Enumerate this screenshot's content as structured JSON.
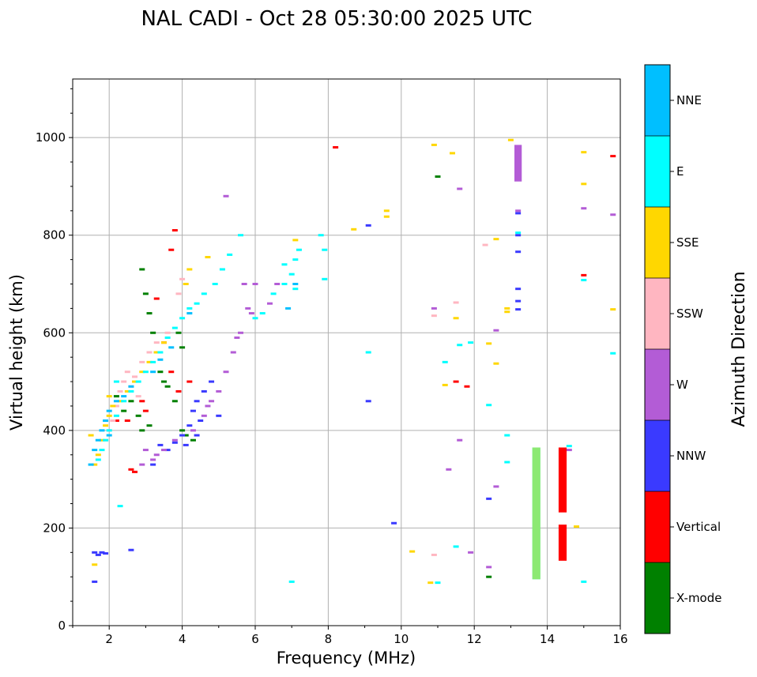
{
  "chart_data": {
    "type": "scatter",
    "title": "NAL CADI - Oct 28 05:30:00 2025 UTC",
    "xlabel": "Frequency (MHz)",
    "ylabel": "Virtual height (km)",
    "xlim": [
      1,
      16
    ],
    "ylim": [
      0,
      1120
    ],
    "xticks": [
      2,
      4,
      6,
      8,
      10,
      12,
      14,
      16
    ],
    "yticks": [
      0,
      200,
      400,
      600,
      800,
      1000
    ],
    "grid": true,
    "colorbar": {
      "title": "Azimuth Direction",
      "categories": [
        {
          "name": "X-mode",
          "color": "#008000"
        },
        {
          "name": "Vertical",
          "color": "#ff0000"
        },
        {
          "name": "NNW",
          "color": "#3a3aff"
        },
        {
          "name": "W",
          "color": "#b35cd6"
        },
        {
          "name": "SSW",
          "color": "#ffb6c1"
        },
        {
          "name": "SSE",
          "color": "#ffd700"
        },
        {
          "name": "E",
          "color": "#00ffff"
        },
        {
          "name": "NNE",
          "color": "#00bfff"
        }
      ]
    },
    "series": [
      {
        "name": "X-mode",
        "points": [
          [
            2.9,
            730
          ],
          [
            3.0,
            680
          ],
          [
            3.1,
            640
          ],
          [
            3.2,
            600
          ],
          [
            3.3,
            560
          ],
          [
            3.4,
            520
          ],
          [
            3.5,
            500
          ],
          [
            3.6,
            490
          ],
          [
            3.8,
            460
          ],
          [
            2.6,
            460
          ],
          [
            2.8,
            430
          ],
          [
            2.9,
            400
          ],
          [
            4.0,
            400
          ],
          [
            4.1,
            390
          ],
          [
            4.3,
            380
          ],
          [
            3.9,
            600
          ],
          [
            4.0,
            570
          ],
          [
            11.0,
            920
          ],
          [
            12.4,
            100
          ],
          [
            13.2,
            960
          ],
          [
            13.2,
            940
          ],
          [
            2.2,
            470
          ],
          [
            2.4,
            440
          ],
          [
            3.1,
            410
          ]
        ]
      },
      {
        "name": "Vertical",
        "points": [
          [
            3.3,
            670
          ],
          [
            3.5,
            580
          ],
          [
            3.7,
            520
          ],
          [
            3.9,
            480
          ],
          [
            2.5,
            420
          ],
          [
            2.2,
            420
          ],
          [
            2.6,
            320
          ],
          [
            2.7,
            315
          ],
          [
            4.2,
            500
          ],
          [
            8.2,
            980
          ],
          [
            11.8,
            490
          ],
          [
            11.5,
            500
          ],
          [
            15.0,
            718
          ],
          [
            15.8,
            962
          ],
          [
            3.0,
            440
          ],
          [
            2.9,
            460
          ],
          [
            3.8,
            810
          ],
          [
            3.7,
            770
          ]
        ]
      },
      {
        "name": "NNW",
        "points": [
          [
            1.6,
            150
          ],
          [
            1.7,
            145
          ],
          [
            1.8,
            150
          ],
          [
            1.9,
            148
          ],
          [
            2.6,
            155
          ],
          [
            1.6,
            90
          ],
          [
            3.4,
            370
          ],
          [
            3.6,
            360
          ],
          [
            3.8,
            375
          ],
          [
            4.0,
            390
          ],
          [
            4.2,
            410
          ],
          [
            4.3,
            440
          ],
          [
            4.4,
            460
          ],
          [
            4.6,
            480
          ],
          [
            4.8,
            500
          ],
          [
            9.1,
            820
          ],
          [
            9.1,
            460
          ],
          [
            9.8,
            210
          ],
          [
            12.4,
            260
          ],
          [
            13.2,
            690
          ],
          [
            13.2,
            665
          ],
          [
            13.2,
            648
          ],
          [
            13.2,
            800
          ],
          [
            13.2,
            766
          ],
          [
            13.2,
            845
          ],
          [
            5.0,
            430
          ],
          [
            4.5,
            420
          ],
          [
            3.2,
            330
          ],
          [
            4.1,
            370
          ],
          [
            4.4,
            390
          ]
        ]
      },
      {
        "name": "W",
        "points": [
          [
            3.2,
            340
          ],
          [
            3.3,
            350
          ],
          [
            3.5,
            360
          ],
          [
            3.8,
            380
          ],
          [
            4.3,
            400
          ],
          [
            4.6,
            430
          ],
          [
            4.8,
            460
          ],
          [
            5.0,
            480
          ],
          [
            5.2,
            520
          ],
          [
            5.4,
            560
          ],
          [
            5.6,
            600
          ],
          [
            5.8,
            650
          ],
          [
            6.0,
            700
          ],
          [
            5.2,
            880
          ],
          [
            5.7,
            700
          ],
          [
            5.9,
            640
          ],
          [
            10.9,
            650
          ],
          [
            11.3,
            320
          ],
          [
            11.6,
            380
          ],
          [
            11.9,
            150
          ],
          [
            12.4,
            120
          ],
          [
            12.6,
            285
          ],
          [
            12.6,
            605
          ],
          [
            13.2,
            850
          ],
          [
            13.2,
            980
          ],
          [
            13.2,
            950
          ],
          [
            13.2,
            920
          ],
          [
            14.6,
            360
          ],
          [
            15.0,
            855
          ],
          [
            15.8,
            842
          ],
          [
            6.6,
            700
          ],
          [
            6.4,
            660
          ],
          [
            3.0,
            360
          ],
          [
            2.9,
            330
          ],
          [
            11.6,
            895
          ],
          [
            4.7,
            450
          ],
          [
            5.5,
            590
          ]
        ]
      },
      {
        "name": "SSW",
        "points": [
          [
            2.0,
            400
          ],
          [
            2.1,
            420
          ],
          [
            2.2,
            450
          ],
          [
            2.3,
            480
          ],
          [
            2.4,
            500
          ],
          [
            2.5,
            520
          ],
          [
            2.7,
            510
          ],
          [
            2.9,
            540
          ],
          [
            3.1,
            560
          ],
          [
            3.3,
            580
          ],
          [
            3.6,
            600
          ],
          [
            3.9,
            680
          ],
          [
            4.0,
            710
          ],
          [
            1.9,
            380
          ],
          [
            2.6,
            490
          ],
          [
            10.9,
            145
          ],
          [
            10.9,
            635
          ],
          [
            11.5,
            662
          ],
          [
            12.3,
            780
          ],
          [
            2.8,
            470
          ]
        ]
      },
      {
        "name": "SSE",
        "points": [
          [
            1.6,
            330
          ],
          [
            1.7,
            350
          ],
          [
            1.8,
            380
          ],
          [
            1.9,
            410
          ],
          [
            2.0,
            430
          ],
          [
            2.1,
            450
          ],
          [
            2.3,
            460
          ],
          [
            2.5,
            480
          ],
          [
            2.7,
            500
          ],
          [
            2.9,
            520
          ],
          [
            3.1,
            540
          ],
          [
            3.3,
            560
          ],
          [
            3.5,
            580
          ],
          [
            4.1,
            700
          ],
          [
            4.2,
            730
          ],
          [
            4.7,
            755
          ],
          [
            8.7,
            812
          ],
          [
            9.6,
            850
          ],
          [
            9.6,
            838
          ],
          [
            10.3,
            152
          ],
          [
            10.8,
            88
          ],
          [
            10.9,
            985
          ],
          [
            11.2,
            493
          ],
          [
            11.4,
            968
          ],
          [
            11.5,
            630
          ],
          [
            12.4,
            578
          ],
          [
            12.6,
            537
          ],
          [
            12.6,
            792
          ],
          [
            12.9,
            650
          ],
          [
            12.9,
            643
          ],
          [
            13.0,
            995
          ],
          [
            14.8,
            203
          ],
          [
            15.0,
            970
          ],
          [
            15.0,
            905
          ],
          [
            15.8,
            648
          ],
          [
            1.6,
            125
          ],
          [
            7.1,
            790
          ],
          [
            1.5,
            390
          ],
          [
            2.0,
            470
          ]
        ]
      },
      {
        "name": "E",
        "points": [
          [
            1.7,
            340
          ],
          [
            1.8,
            360
          ],
          [
            1.9,
            380
          ],
          [
            2.0,
            400
          ],
          [
            2.2,
            430
          ],
          [
            2.4,
            460
          ],
          [
            2.6,
            480
          ],
          [
            2.8,
            500
          ],
          [
            3.0,
            520
          ],
          [
            3.2,
            540
          ],
          [
            3.4,
            560
          ],
          [
            3.6,
            590
          ],
          [
            3.8,
            610
          ],
          [
            4.0,
            630
          ],
          [
            4.2,
            650
          ],
          [
            4.4,
            660
          ],
          [
            4.6,
            680
          ],
          [
            4.9,
            700
          ],
          [
            5.1,
            730
          ],
          [
            5.3,
            760
          ],
          [
            5.6,
            800
          ],
          [
            6.0,
            630
          ],
          [
            6.2,
            640
          ],
          [
            6.5,
            680
          ],
          [
            6.8,
            700
          ],
          [
            7.0,
            720
          ],
          [
            7.1,
            750
          ],
          [
            7.2,
            770
          ],
          [
            7.8,
            800
          ],
          [
            7.9,
            770
          ],
          [
            7.9,
            710
          ],
          [
            9.1,
            560
          ],
          [
            11.0,
            88
          ],
          [
            11.2,
            540
          ],
          [
            11.5,
            162
          ],
          [
            11.6,
            575
          ],
          [
            11.9,
            580
          ],
          [
            12.4,
            452
          ],
          [
            12.9,
            390
          ],
          [
            12.9,
            335
          ],
          [
            13.2,
            805
          ],
          [
            14.6,
            368
          ],
          [
            15.0,
            708
          ],
          [
            15.0,
            90
          ],
          [
            15.8,
            558
          ],
          [
            7.0,
            90
          ],
          [
            2.3,
            245
          ],
          [
            2.2,
            500
          ],
          [
            6.8,
            740
          ],
          [
            7.1,
            690
          ]
        ]
      },
      {
        "name": "NNE",
        "points": [
          [
            1.5,
            330
          ],
          [
            1.6,
            360
          ],
          [
            1.7,
            380
          ],
          [
            1.8,
            400
          ],
          [
            1.9,
            420
          ],
          [
            2.0,
            440
          ],
          [
            2.2,
            460
          ],
          [
            2.4,
            470
          ],
          [
            2.6,
            490
          ],
          [
            3.2,
            520
          ],
          [
            3.4,
            545
          ],
          [
            3.7,
            570
          ],
          [
            4.2,
            640
          ],
          [
            6.9,
            650
          ],
          [
            7.1,
            700
          ],
          [
            2.0,
            390
          ]
        ]
      }
    ],
    "bars": [
      {
        "name": "E",
        "x": 13.7,
        "width": 0.22,
        "y0": 95,
        "y1": 365
      },
      {
        "name": "SSE",
        "x": 13.7,
        "width": 0.22,
        "y0": 95,
        "y1": 365
      },
      {
        "name": "Vertical",
        "x": 14.42,
        "width": 0.22,
        "y0": 232,
        "y1": 365
      },
      {
        "name": "Vertical",
        "x": 14.42,
        "width": 0.22,
        "y0": 133,
        "y1": 207
      },
      {
        "name": "W",
        "x": 13.2,
        "width": 0.2,
        "y0": 910,
        "y1": 985
      }
    ]
  }
}
